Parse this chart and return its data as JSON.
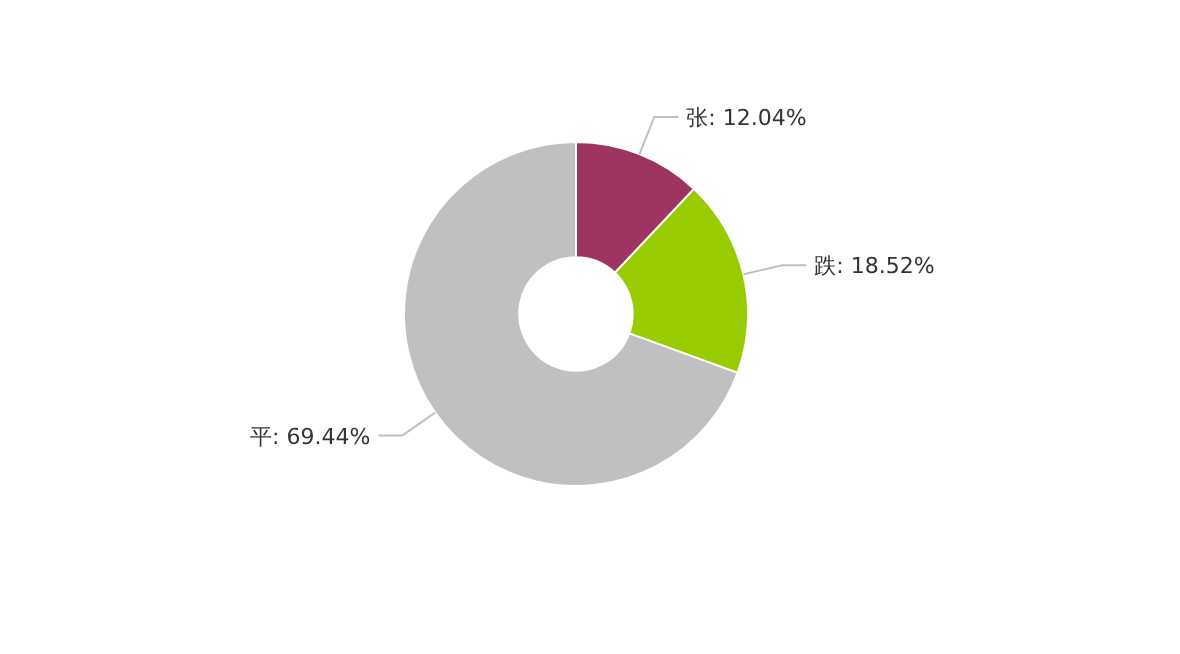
{
  "chart_data": {
    "type": "donut",
    "categories": [
      "张",
      "跌",
      "平"
    ],
    "values": [
      12.04,
      18.52,
      69.44
    ],
    "colors": [
      "#9e3462",
      "#99cc00",
      "#c0c0c0"
    ],
    "value_labels": [
      ": 12.04%",
      ": 18.52%",
      ": 69.44%"
    ]
  }
}
